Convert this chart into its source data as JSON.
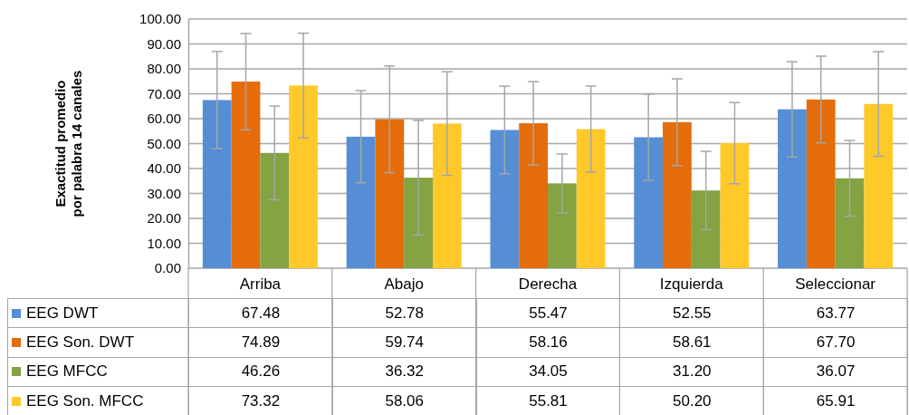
{
  "chart_data": {
    "type": "bar",
    "ylabel": "Exactitud promedio\npor palabra 14 canales",
    "categories": [
      "Arriba",
      "Abajo",
      "Derecha",
      "Izquierda",
      "Seleccionar"
    ],
    "series": [
      {
        "name": "EEG DWT",
        "color": "#558ed5",
        "values": [
          67.48,
          52.78,
          55.47,
          52.55,
          63.77
        ],
        "value_labels": [
          "67.48",
          "52.78",
          "55.47",
          "52.55",
          "63.77"
        ],
        "errors": [
          19.5,
          18.5,
          17.6,
          17.3,
          19.1
        ]
      },
      {
        "name": "EEG Son. DWT",
        "color": "#e46c0a",
        "values": [
          74.89,
          59.74,
          58.16,
          58.61,
          67.7
        ],
        "value_labels": [
          "74.89",
          "59.74",
          "58.16",
          "58.61",
          "67.70"
        ],
        "errors": [
          19.3,
          21.4,
          16.7,
          17.4,
          17.4
        ]
      },
      {
        "name": "EEG MFCC",
        "color": "#84a343",
        "values": [
          46.26,
          36.32,
          34.05,
          31.2,
          36.07
        ],
        "value_labels": [
          "46.26",
          "36.32",
          "34.05",
          "31.20",
          "36.07"
        ],
        "errors": [
          18.8,
          23,
          11.8,
          15.7,
          15.2
        ]
      },
      {
        "name": "EEG Son. MFCC",
        "color": "#ffc92a",
        "values": [
          73.32,
          58.06,
          55.81,
          50.2,
          65.91
        ],
        "value_labels": [
          "73.32",
          "58.06",
          "55.81",
          "50.20",
          "65.91"
        ],
        "errors": [
          21,
          20.8,
          17.3,
          16.3,
          21
        ]
      }
    ],
    "ylim": [
      0,
      100
    ],
    "yticks": [
      {
        "value": 0,
        "label": "0.00"
      },
      {
        "value": 10,
        "label": "10.00"
      },
      {
        "value": 20,
        "label": "20.00"
      },
      {
        "value": 30,
        "label": "30.00"
      },
      {
        "value": 40,
        "label": "40.00"
      },
      {
        "value": 50,
        "label": "50.00"
      },
      {
        "value": 60,
        "label": "60.00"
      },
      {
        "value": 70,
        "label": "70.00"
      },
      {
        "value": 80,
        "label": "80.00"
      },
      {
        "value": 90,
        "label": "90.00"
      },
      {
        "value": 100,
        "label": "100.00"
      }
    ],
    "grid": "y",
    "legend": "bottom"
  }
}
